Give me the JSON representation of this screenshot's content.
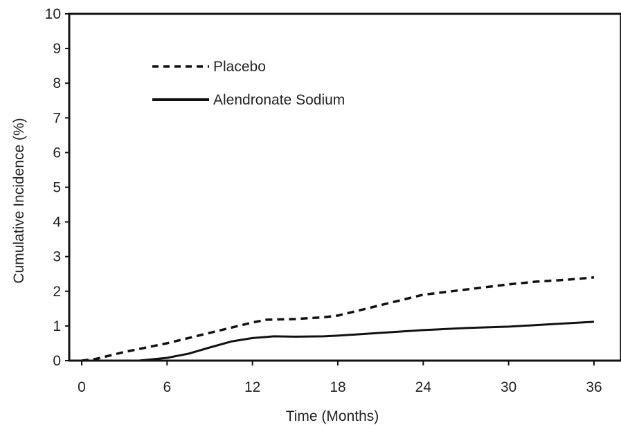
{
  "chart_data": {
    "type": "line",
    "title": "",
    "xlabel": "Time (Months)",
    "ylabel": "Cumulative Incidence (%)",
    "xlim": [
      0,
      36
    ],
    "ylim": [
      0,
      10
    ],
    "x_ticks": [
      0,
      6,
      12,
      18,
      24,
      30,
      36
    ],
    "y_ticks": [
      0,
      1,
      2,
      3,
      4,
      5,
      6,
      7,
      8,
      9,
      10
    ],
    "grid": false,
    "legend_position": "top-left",
    "series": [
      {
        "name": "Placebo",
        "style": "dashed",
        "color": "#111111",
        "x": [
          0,
          1,
          3,
          6,
          9,
          12,
          13,
          15,
          17,
          18,
          20,
          22,
          24,
          26,
          28,
          30,
          32,
          34,
          36
        ],
        "y": [
          0,
          0.05,
          0.25,
          0.5,
          0.8,
          1.1,
          1.18,
          1.2,
          1.25,
          1.3,
          1.5,
          1.7,
          1.9,
          2.0,
          2.1,
          2.2,
          2.28,
          2.33,
          2.4
        ]
      },
      {
        "name": "Alendronate Sodium",
        "style": "solid",
        "color": "#111111",
        "x": [
          0,
          4,
          6,
          7.5,
          9,
          10.5,
          12,
          13.5,
          15,
          17,
          18,
          21,
          24,
          27,
          30,
          33,
          36
        ],
        "y": [
          0,
          0,
          0.08,
          0.2,
          0.38,
          0.55,
          0.65,
          0.7,
          0.69,
          0.7,
          0.72,
          0.8,
          0.88,
          0.94,
          0.98,
          1.05,
          1.12
        ]
      }
    ]
  }
}
